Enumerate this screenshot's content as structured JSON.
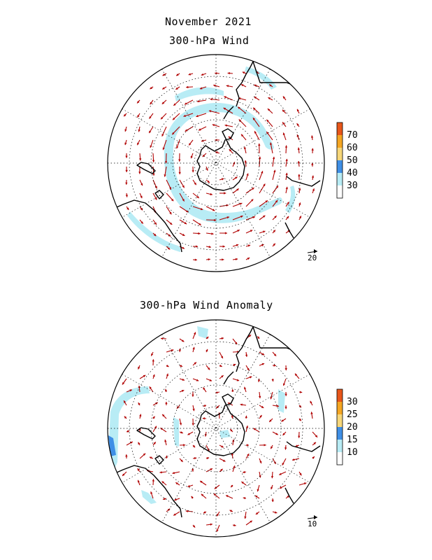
{
  "title_month": "November 2021",
  "panels": [
    {
      "id": "wind",
      "title": "300-hPa Wind",
      "scale_ref": "20",
      "colorbar": {
        "ticks": [
          "70",
          "60",
          "50",
          "40",
          "30"
        ],
        "colors": [
          "#e8561a",
          "#f5a623",
          "#f7d77a",
          "#3f8fe6",
          "#b8ecf5",
          "#ffffff"
        ]
      }
    },
    {
      "id": "anomaly",
      "title": "300-hPa Wind Anomaly",
      "scale_ref": "10",
      "colorbar": {
        "ticks": [
          "30",
          "25",
          "20",
          "15",
          "10"
        ],
        "colors": [
          "#e8561a",
          "#f5a623",
          "#f7d77a",
          "#3f8fe6",
          "#b8ecf5",
          "#ffffff"
        ]
      }
    }
  ],
  "arrow_color": "#b00000",
  "shade_color": "#b8ecf5",
  "strong_shade_color": "#3f8fe6"
}
